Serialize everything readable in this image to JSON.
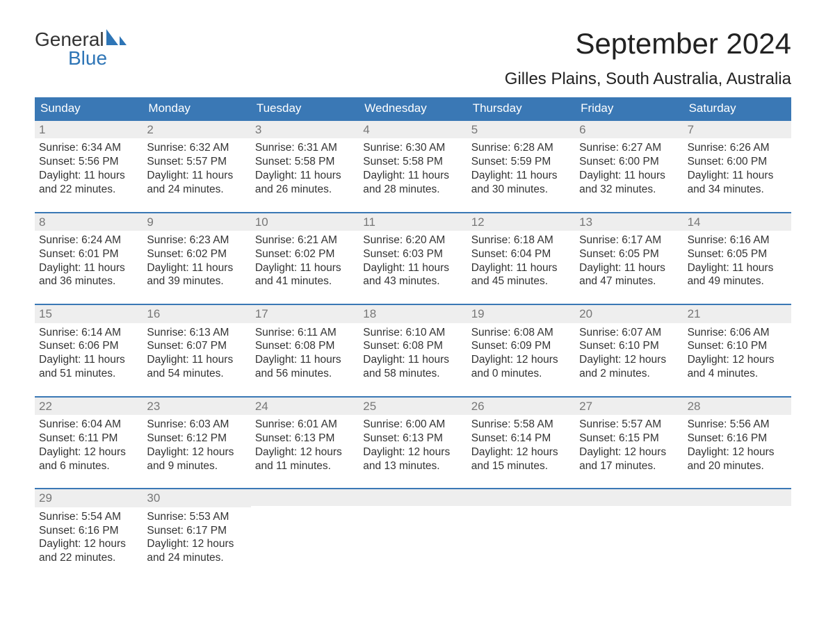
{
  "logo": {
    "line1": "General",
    "line2": "Blue"
  },
  "title": "September 2024",
  "location": "Gilles Plains, South Australia, Australia",
  "colors": {
    "header_bg": "#3a78b5",
    "header_text": "#ffffff",
    "week_border": "#3a78b5",
    "daynum_bg": "#eeeeee",
    "daynum_text": "#777777",
    "body_text": "#333333",
    "logo_blue": "#2e75b6",
    "page_bg": "#ffffff"
  },
  "layout": {
    "columns": 7,
    "rows": 5,
    "dow_fontsize": 17,
    "title_fontsize": 42,
    "location_fontsize": 24,
    "body_fontsize": 15.5
  },
  "dow": [
    "Sunday",
    "Monday",
    "Tuesday",
    "Wednesday",
    "Thursday",
    "Friday",
    "Saturday"
  ],
  "weeks": [
    [
      {
        "n": "1",
        "sunrise": "Sunrise: 6:34 AM",
        "sunset": "Sunset: 5:56 PM",
        "dl1": "Daylight: 11 hours",
        "dl2": "and 22 minutes."
      },
      {
        "n": "2",
        "sunrise": "Sunrise: 6:32 AM",
        "sunset": "Sunset: 5:57 PM",
        "dl1": "Daylight: 11 hours",
        "dl2": "and 24 minutes."
      },
      {
        "n": "3",
        "sunrise": "Sunrise: 6:31 AM",
        "sunset": "Sunset: 5:58 PM",
        "dl1": "Daylight: 11 hours",
        "dl2": "and 26 minutes."
      },
      {
        "n": "4",
        "sunrise": "Sunrise: 6:30 AM",
        "sunset": "Sunset: 5:58 PM",
        "dl1": "Daylight: 11 hours",
        "dl2": "and 28 minutes."
      },
      {
        "n": "5",
        "sunrise": "Sunrise: 6:28 AM",
        "sunset": "Sunset: 5:59 PM",
        "dl1": "Daylight: 11 hours",
        "dl2": "and 30 minutes."
      },
      {
        "n": "6",
        "sunrise": "Sunrise: 6:27 AM",
        "sunset": "Sunset: 6:00 PM",
        "dl1": "Daylight: 11 hours",
        "dl2": "and 32 minutes."
      },
      {
        "n": "7",
        "sunrise": "Sunrise: 6:26 AM",
        "sunset": "Sunset: 6:00 PM",
        "dl1": "Daylight: 11 hours",
        "dl2": "and 34 minutes."
      }
    ],
    [
      {
        "n": "8",
        "sunrise": "Sunrise: 6:24 AM",
        "sunset": "Sunset: 6:01 PM",
        "dl1": "Daylight: 11 hours",
        "dl2": "and 36 minutes."
      },
      {
        "n": "9",
        "sunrise": "Sunrise: 6:23 AM",
        "sunset": "Sunset: 6:02 PM",
        "dl1": "Daylight: 11 hours",
        "dl2": "and 39 minutes."
      },
      {
        "n": "10",
        "sunrise": "Sunrise: 6:21 AM",
        "sunset": "Sunset: 6:02 PM",
        "dl1": "Daylight: 11 hours",
        "dl2": "and 41 minutes."
      },
      {
        "n": "11",
        "sunrise": "Sunrise: 6:20 AM",
        "sunset": "Sunset: 6:03 PM",
        "dl1": "Daylight: 11 hours",
        "dl2": "and 43 minutes."
      },
      {
        "n": "12",
        "sunrise": "Sunrise: 6:18 AM",
        "sunset": "Sunset: 6:04 PM",
        "dl1": "Daylight: 11 hours",
        "dl2": "and 45 minutes."
      },
      {
        "n": "13",
        "sunrise": "Sunrise: 6:17 AM",
        "sunset": "Sunset: 6:05 PM",
        "dl1": "Daylight: 11 hours",
        "dl2": "and 47 minutes."
      },
      {
        "n": "14",
        "sunrise": "Sunrise: 6:16 AM",
        "sunset": "Sunset: 6:05 PM",
        "dl1": "Daylight: 11 hours",
        "dl2": "and 49 minutes."
      }
    ],
    [
      {
        "n": "15",
        "sunrise": "Sunrise: 6:14 AM",
        "sunset": "Sunset: 6:06 PM",
        "dl1": "Daylight: 11 hours",
        "dl2": "and 51 minutes."
      },
      {
        "n": "16",
        "sunrise": "Sunrise: 6:13 AM",
        "sunset": "Sunset: 6:07 PM",
        "dl1": "Daylight: 11 hours",
        "dl2": "and 54 minutes."
      },
      {
        "n": "17",
        "sunrise": "Sunrise: 6:11 AM",
        "sunset": "Sunset: 6:08 PM",
        "dl1": "Daylight: 11 hours",
        "dl2": "and 56 minutes."
      },
      {
        "n": "18",
        "sunrise": "Sunrise: 6:10 AM",
        "sunset": "Sunset: 6:08 PM",
        "dl1": "Daylight: 11 hours",
        "dl2": "and 58 minutes."
      },
      {
        "n": "19",
        "sunrise": "Sunrise: 6:08 AM",
        "sunset": "Sunset: 6:09 PM",
        "dl1": "Daylight: 12 hours",
        "dl2": "and 0 minutes."
      },
      {
        "n": "20",
        "sunrise": "Sunrise: 6:07 AM",
        "sunset": "Sunset: 6:10 PM",
        "dl1": "Daylight: 12 hours",
        "dl2": "and 2 minutes."
      },
      {
        "n": "21",
        "sunrise": "Sunrise: 6:06 AM",
        "sunset": "Sunset: 6:10 PM",
        "dl1": "Daylight: 12 hours",
        "dl2": "and 4 minutes."
      }
    ],
    [
      {
        "n": "22",
        "sunrise": "Sunrise: 6:04 AM",
        "sunset": "Sunset: 6:11 PM",
        "dl1": "Daylight: 12 hours",
        "dl2": "and 6 minutes."
      },
      {
        "n": "23",
        "sunrise": "Sunrise: 6:03 AM",
        "sunset": "Sunset: 6:12 PM",
        "dl1": "Daylight: 12 hours",
        "dl2": "and 9 minutes."
      },
      {
        "n": "24",
        "sunrise": "Sunrise: 6:01 AM",
        "sunset": "Sunset: 6:13 PM",
        "dl1": "Daylight: 12 hours",
        "dl2": "and 11 minutes."
      },
      {
        "n": "25",
        "sunrise": "Sunrise: 6:00 AM",
        "sunset": "Sunset: 6:13 PM",
        "dl1": "Daylight: 12 hours",
        "dl2": "and 13 minutes."
      },
      {
        "n": "26",
        "sunrise": "Sunrise: 5:58 AM",
        "sunset": "Sunset: 6:14 PM",
        "dl1": "Daylight: 12 hours",
        "dl2": "and 15 minutes."
      },
      {
        "n": "27",
        "sunrise": "Sunrise: 5:57 AM",
        "sunset": "Sunset: 6:15 PM",
        "dl1": "Daylight: 12 hours",
        "dl2": "and 17 minutes."
      },
      {
        "n": "28",
        "sunrise": "Sunrise: 5:56 AM",
        "sunset": "Sunset: 6:16 PM",
        "dl1": "Daylight: 12 hours",
        "dl2": "and 20 minutes."
      }
    ],
    [
      {
        "n": "29",
        "sunrise": "Sunrise: 5:54 AM",
        "sunset": "Sunset: 6:16 PM",
        "dl1": "Daylight: 12 hours",
        "dl2": "and 22 minutes."
      },
      {
        "n": "30",
        "sunrise": "Sunrise: 5:53 AM",
        "sunset": "Sunset: 6:17 PM",
        "dl1": "Daylight: 12 hours",
        "dl2": "and 24 minutes."
      },
      {
        "empty": true
      },
      {
        "empty": true
      },
      {
        "empty": true
      },
      {
        "empty": true
      },
      {
        "empty": true
      }
    ]
  ]
}
